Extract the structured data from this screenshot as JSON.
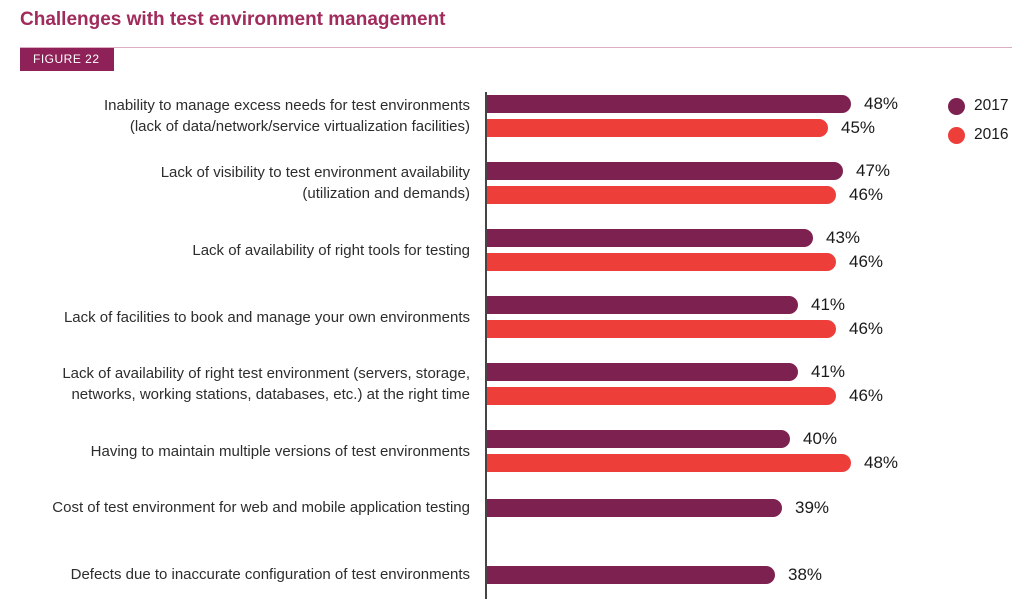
{
  "title": "Challenges with test environment management",
  "figure_label": "FIGURE 22",
  "colors": {
    "title_accent": "#a02b5c",
    "figure_badge_bg": "#8e2157",
    "figure_badge_text": "#ffffff",
    "rule_line": "#dcaec3",
    "axis_line": "#454545",
    "series_2017": "#7c2150",
    "series_2016": "#ee3e3a"
  },
  "legend": [
    {
      "label": "2017",
      "color": "#7c2150"
    },
    {
      "label": "2016",
      "color": "#ee3e3a"
    }
  ],
  "chart_data": {
    "type": "bar",
    "orientation": "horizontal",
    "unit": "%",
    "xlim": [
      0,
      55
    ],
    "grid": false,
    "legend_position": "top-right",
    "series_names": [
      "2017",
      "2016"
    ],
    "categories": [
      "Inability to manage excess needs for test environments (lack of data/network/service virtualization facilities)",
      "Lack of visibility to test environment availability (utilization and demands)",
      "Lack of availability of right tools for testing",
      "Lack of facilities to book and manage your own environments",
      "Lack of availability of right test environment (servers, storage, networks, working stations, databases, etc.) at the right time",
      "Having to maintain multiple versions of test environments",
      "Cost of test environment for web and mobile application testing",
      "Defects due to inaccurate configuration of test environments"
    ],
    "rows": [
      {
        "label_lines": [
          "Inability to manage excess needs for test environments",
          "(lack of data/network/service virtualization facilities)"
        ],
        "values": {
          "2017": 48,
          "2016": 45
        }
      },
      {
        "label_lines": [
          "Lack of visibility to test environment availability",
          "(utilization and demands)"
        ],
        "values": {
          "2017": 47,
          "2016": 46
        }
      },
      {
        "label_lines": [
          "Lack of availability of right tools for testing"
        ],
        "values": {
          "2017": 43,
          "2016": 46
        }
      },
      {
        "label_lines": [
          "Lack of facilities to book and manage your own environments"
        ],
        "values": {
          "2017": 41,
          "2016": 46
        }
      },
      {
        "label_lines": [
          "Lack of availability of right test environment (servers, storage,",
          "networks, working stations, databases, etc.) at the right time"
        ],
        "values": {
          "2017": 41,
          "2016": 46
        }
      },
      {
        "label_lines": [
          "Having to maintain multiple versions of test environments"
        ],
        "values": {
          "2017": 40,
          "2016": 48
        }
      },
      {
        "label_lines": [
          "Cost of test environment for web and mobile application testing"
        ],
        "values": {
          "2017": 39
        }
      },
      {
        "label_lines": [
          "Defects due to inaccurate configuration of test environments"
        ],
        "values": {
          "2017": 38
        }
      }
    ]
  }
}
